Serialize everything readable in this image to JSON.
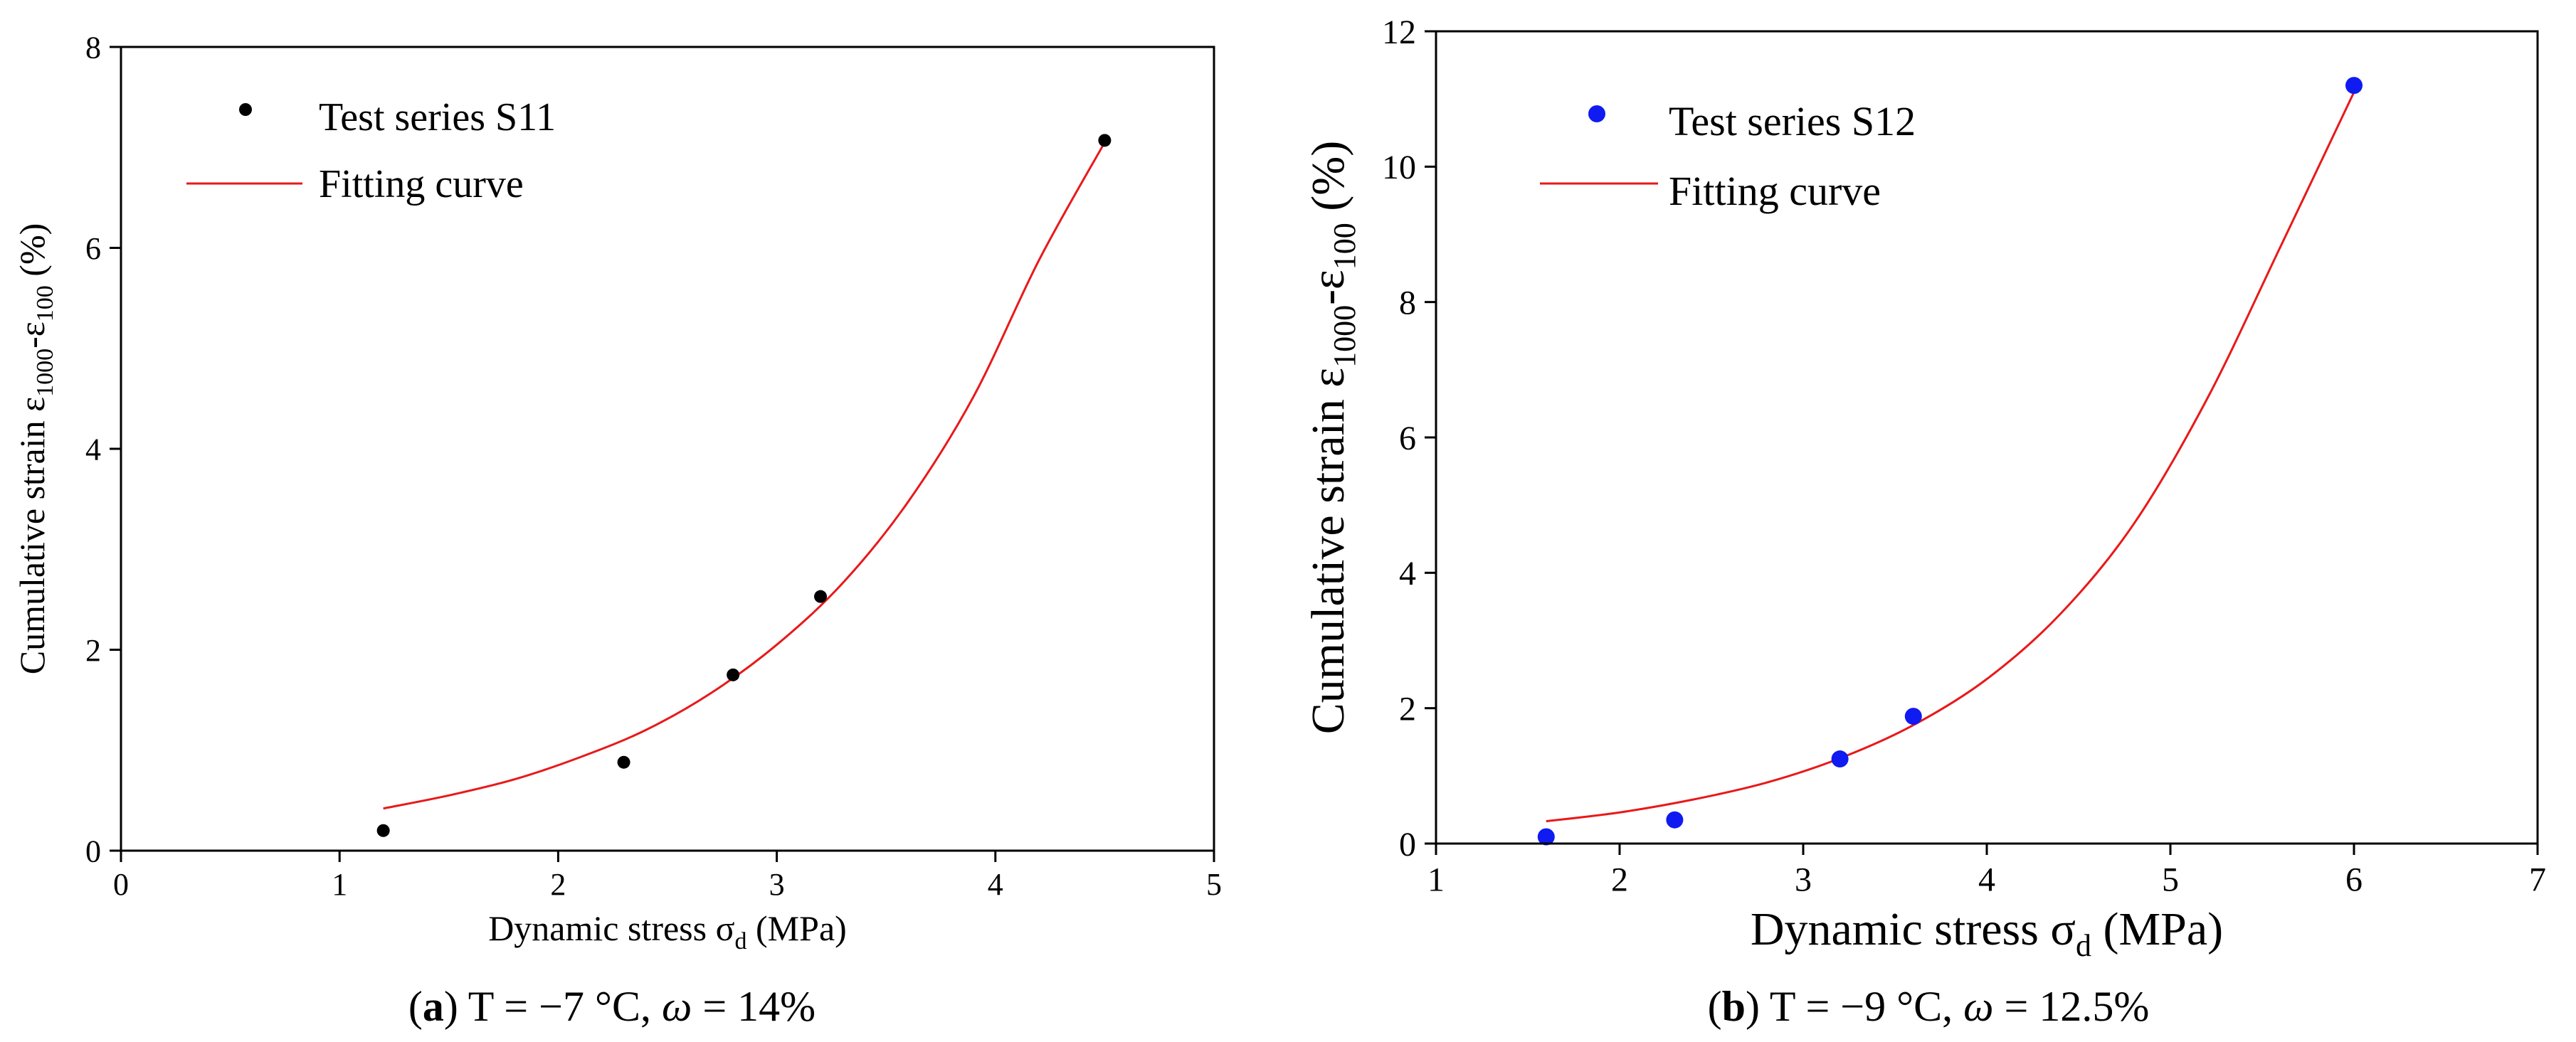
{
  "chart_data": [
    {
      "type": "scatter",
      "panel_label": "a",
      "caption_rest": " T = −7 °C, ",
      "caption_symbol": "ω",
      "caption_value": " = 14%",
      "xlabel_main": "Dynamic stress σ",
      "xlabel_sub": "d",
      "xlabel_end": " (MPa)",
      "ylabel_parts": [
        "Cumulative strain ε",
        "1000",
        "-ε",
        "100",
        " (%)"
      ],
      "xlim": [
        0,
        5
      ],
      "ylim": [
        0,
        8
      ],
      "xticks": [
        0,
        1,
        2,
        3,
        4,
        5
      ],
      "yticks": [
        0,
        2,
        4,
        6,
        8
      ],
      "grid": false,
      "legend_position": "top-left",
      "series": [
        {
          "name": "Test series  S11",
          "kind": "points",
          "color": "#000000",
          "x": [
            1.2,
            2.3,
            2.8,
            3.2,
            4.5
          ],
          "y": [
            0.2,
            0.88,
            1.75,
            2.53,
            7.07
          ]
        },
        {
          "name": "Fitting curve",
          "kind": "line",
          "color": "#e8191a",
          "x": [
            1.2,
            1.5,
            1.8,
            2.1,
            2.4,
            2.7,
            3.0,
            3.3,
            3.6,
            3.9,
            4.2,
            4.5
          ],
          "y": [
            0.42,
            0.55,
            0.71,
            0.93,
            1.2,
            1.57,
            2.05,
            2.66,
            3.47,
            4.52,
            5.88,
            7.05
          ]
        }
      ]
    },
    {
      "type": "scatter",
      "panel_label": "b",
      "caption_rest": " T = −9 °C, ",
      "caption_symbol": "ω",
      "caption_value": " = 12.5%",
      "xlabel_main": "Dynamic stress σ",
      "xlabel_sub": "d",
      "xlabel_end": " (MPa)",
      "ylabel_parts": [
        "Cumulative strain ε",
        "1000",
        "-ε",
        "100",
        " (%)"
      ],
      "xlim": [
        1,
        7
      ],
      "ylim": [
        0,
        12
      ],
      "xticks": [
        1,
        2,
        3,
        4,
        5,
        6,
        7
      ],
      "yticks": [
        0,
        2,
        4,
        6,
        8,
        10,
        12
      ],
      "grid": false,
      "legend_position": "top-left",
      "series": [
        {
          "name": "Test series S12",
          "kind": "points",
          "color": "#0f1bf0",
          "x": [
            1.6,
            2.3,
            3.2,
            3.6,
            6.0
          ],
          "y": [
            0.1,
            0.35,
            1.25,
            1.88,
            11.2
          ]
        },
        {
          "name": "Fitting curve",
          "kind": "line",
          "color": "#e8191a",
          "x": [
            1.6,
            2.0,
            2.4,
            2.8,
            3.2,
            3.6,
            4.0,
            4.4,
            4.8,
            5.2,
            5.6,
            6.0
          ],
          "y": [
            0.33,
            0.46,
            0.65,
            0.9,
            1.26,
            1.75,
            2.43,
            3.39,
            4.72,
            6.57,
            8.82,
            11.1
          ]
        }
      ]
    }
  ]
}
